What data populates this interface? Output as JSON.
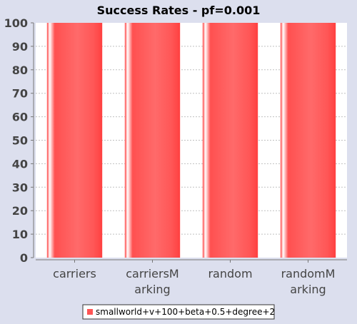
{
  "chart_data": {
    "type": "bar",
    "title": "Success Rates - pf=0.001",
    "xlabel": "",
    "ylabel": "",
    "categories": [
      [
        "carriers"
      ],
      [
        "carriersM",
        "arking"
      ],
      [
        "random"
      ],
      [
        "randomM",
        "arking"
      ]
    ],
    "series": [
      {
        "name": "smallworld+v+100+beta+0.5+degree+2",
        "values": [
          100,
          100,
          100,
          100
        ],
        "color": "#ff5555"
      }
    ],
    "ylim": [
      0,
      100
    ],
    "yticks": [
      0,
      10,
      20,
      30,
      40,
      50,
      60,
      70,
      80,
      90,
      100
    ],
    "grid": true,
    "legend_position": "bottom"
  }
}
